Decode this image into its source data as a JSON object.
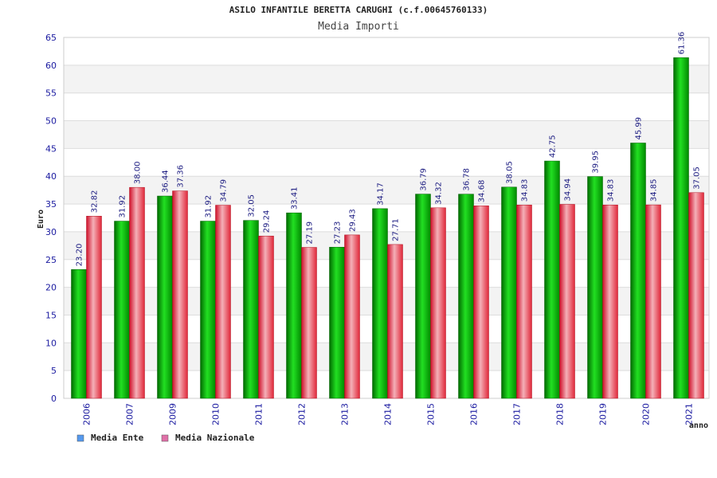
{
  "chart_data": {
    "type": "bar",
    "title": "ASILO INFANTILE BERETTA CARUGHI (c.f.00645760133)",
    "subtitle": "Media Importi",
    "xlabel": "anno",
    "ylabel": "Euro",
    "ylim": [
      0,
      65
    ],
    "yticks": [
      0,
      5,
      10,
      15,
      20,
      25,
      30,
      35,
      40,
      45,
      50,
      55,
      60,
      65
    ],
    "grid": true,
    "legend_position": "bottom-left",
    "categories": [
      "2006",
      "2007",
      "2009",
      "2010",
      "2011",
      "2012",
      "2013",
      "2014",
      "2015",
      "2016",
      "2017",
      "2018",
      "2019",
      "2020",
      "2021"
    ],
    "series": [
      {
        "name": "Media Ente",
        "color": "#00a800",
        "legend_color": "#5599ee",
        "values": [
          23.2,
          31.92,
          36.44,
          31.92,
          32.05,
          33.41,
          27.23,
          34.17,
          36.79,
          36.78,
          38.05,
          42.75,
          39.95,
          45.99,
          61.36
        ],
        "labels": [
          "23.20",
          "31.92",
          "36.44",
          "31.92",
          "32.05",
          "33.41",
          "27.23",
          "34.17",
          "36.79",
          "36.78",
          "38.05",
          "42.75",
          "39.95",
          "45.99",
          "61.36"
        ]
      },
      {
        "name": "Media Nazionale",
        "color": "#e8303c",
        "legend_color": "#e070a8",
        "values": [
          32.82,
          38.0,
          37.36,
          34.79,
          29.24,
          27.19,
          29.43,
          27.71,
          34.32,
          34.68,
          34.83,
          34.94,
          34.83,
          34.85,
          37.05
        ],
        "labels": [
          "32.82",
          "38.00",
          "37.36",
          "34.79",
          "29.24",
          "27.19",
          "29.43",
          "27.71",
          "34.32",
          "34.68",
          "34.83",
          "34.94",
          "34.83",
          "34.85",
          "37.05"
        ]
      }
    ]
  }
}
